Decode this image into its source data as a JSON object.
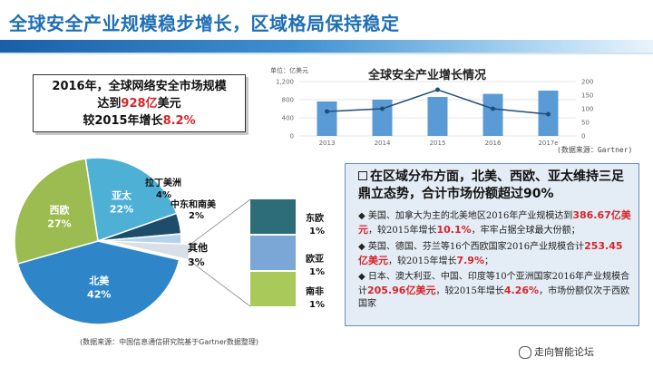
{
  "slide": {
    "title": "全球安全产业规模稳步增长，区域格局保持稳定"
  },
  "headline": {
    "line1": "2016年，全球网络安全市场规模",
    "line2_pre": "达到",
    "line2_hl": "928亿",
    "line2_post": "美元",
    "line3_pre": "较2015年增长",
    "line3_hl": "8.2%"
  },
  "bar_chart": {
    "title": "全球安全产业增长情况",
    "unit_label": "单位：亿美元",
    "source": "(数据来源：Gartner)",
    "chart_data": {
      "type": "bar",
      "categories": [
        "2013",
        "2014",
        "2015",
        "2016",
        "2017e"
      ],
      "values": [
        760,
        800,
        860,
        928,
        1000
      ],
      "ylim": [
        0,
        1200
      ],
      "yticks": [
        "1,200",
        "800",
        "400",
        "0"
      ],
      "line_series": {
        "values": [
          90,
          100,
          170,
          100,
          80
        ],
        "ylim": [
          0,
          200
        ],
        "ticks": [
          "200",
          "150",
          "100",
          "50",
          "0"
        ]
      }
    }
  },
  "pie_chart": {
    "source": "(数据来源：中国信息通信研究院基于Gartner数据整理)",
    "chart_data": {
      "type": "pie",
      "slices": [
        {
          "label": "北美",
          "value": 42,
          "display": "42%",
          "color": "#2e86c8"
        },
        {
          "label": "西欧",
          "value": 27,
          "display": "27%",
          "color": "#9cbb50"
        },
        {
          "label": "亚太",
          "value": 22,
          "display": "22%",
          "color": "#4fb0d6"
        },
        {
          "label": "拉丁美洲",
          "value": 4,
          "display": "4%",
          "color": "#1e4d6b"
        },
        {
          "label": "中东和南美",
          "value": 2,
          "display": "2%",
          "color": "#b7d3ec"
        },
        {
          "label": "其他",
          "value": 3,
          "display": "3%",
          "color": "#d9dfe6"
        }
      ],
      "breakdown": [
        {
          "label": "东欧",
          "value": "1%",
          "color": "#2d6d7a"
        },
        {
          "label": "欧亚",
          "value": "1%",
          "color": "#7aa7d6"
        },
        {
          "label": "南非",
          "value": "1%",
          "color": "#a9c95a"
        }
      ]
    }
  },
  "region": {
    "title": "在区域分布方面，北美、西欧、亚太维持三足鼎立态势，合计市场份额超过90%",
    "bullets": [
      {
        "pre": "美国、加拿大为主的北美地区2016年产业规模达到",
        "hl1": "386.67亿美元",
        "mid": "，较2015年增长",
        "hl2": "10.1%",
        "post": "，牢牢占据全球最大份额；"
      },
      {
        "pre": "英国、德国、芬兰等16个西欧国家2016产业规模合计",
        "hl1": "253.45亿美元",
        "mid": "，较2015年增长",
        "hl2": "7.9%",
        "post": "；"
      },
      {
        "pre": "日本、澳大利亚、中国、印度等10个亚洲国家2016年产业规模合计",
        "hl1": "205.96亿美元",
        "mid": "，较2015年增长",
        "hl2": "4.26%",
        "post": "，市场份额仅次于西欧国家"
      }
    ]
  },
  "footer": {
    "logo_text": "走向智能论坛",
    "logo_icon": "wechat-icon"
  }
}
